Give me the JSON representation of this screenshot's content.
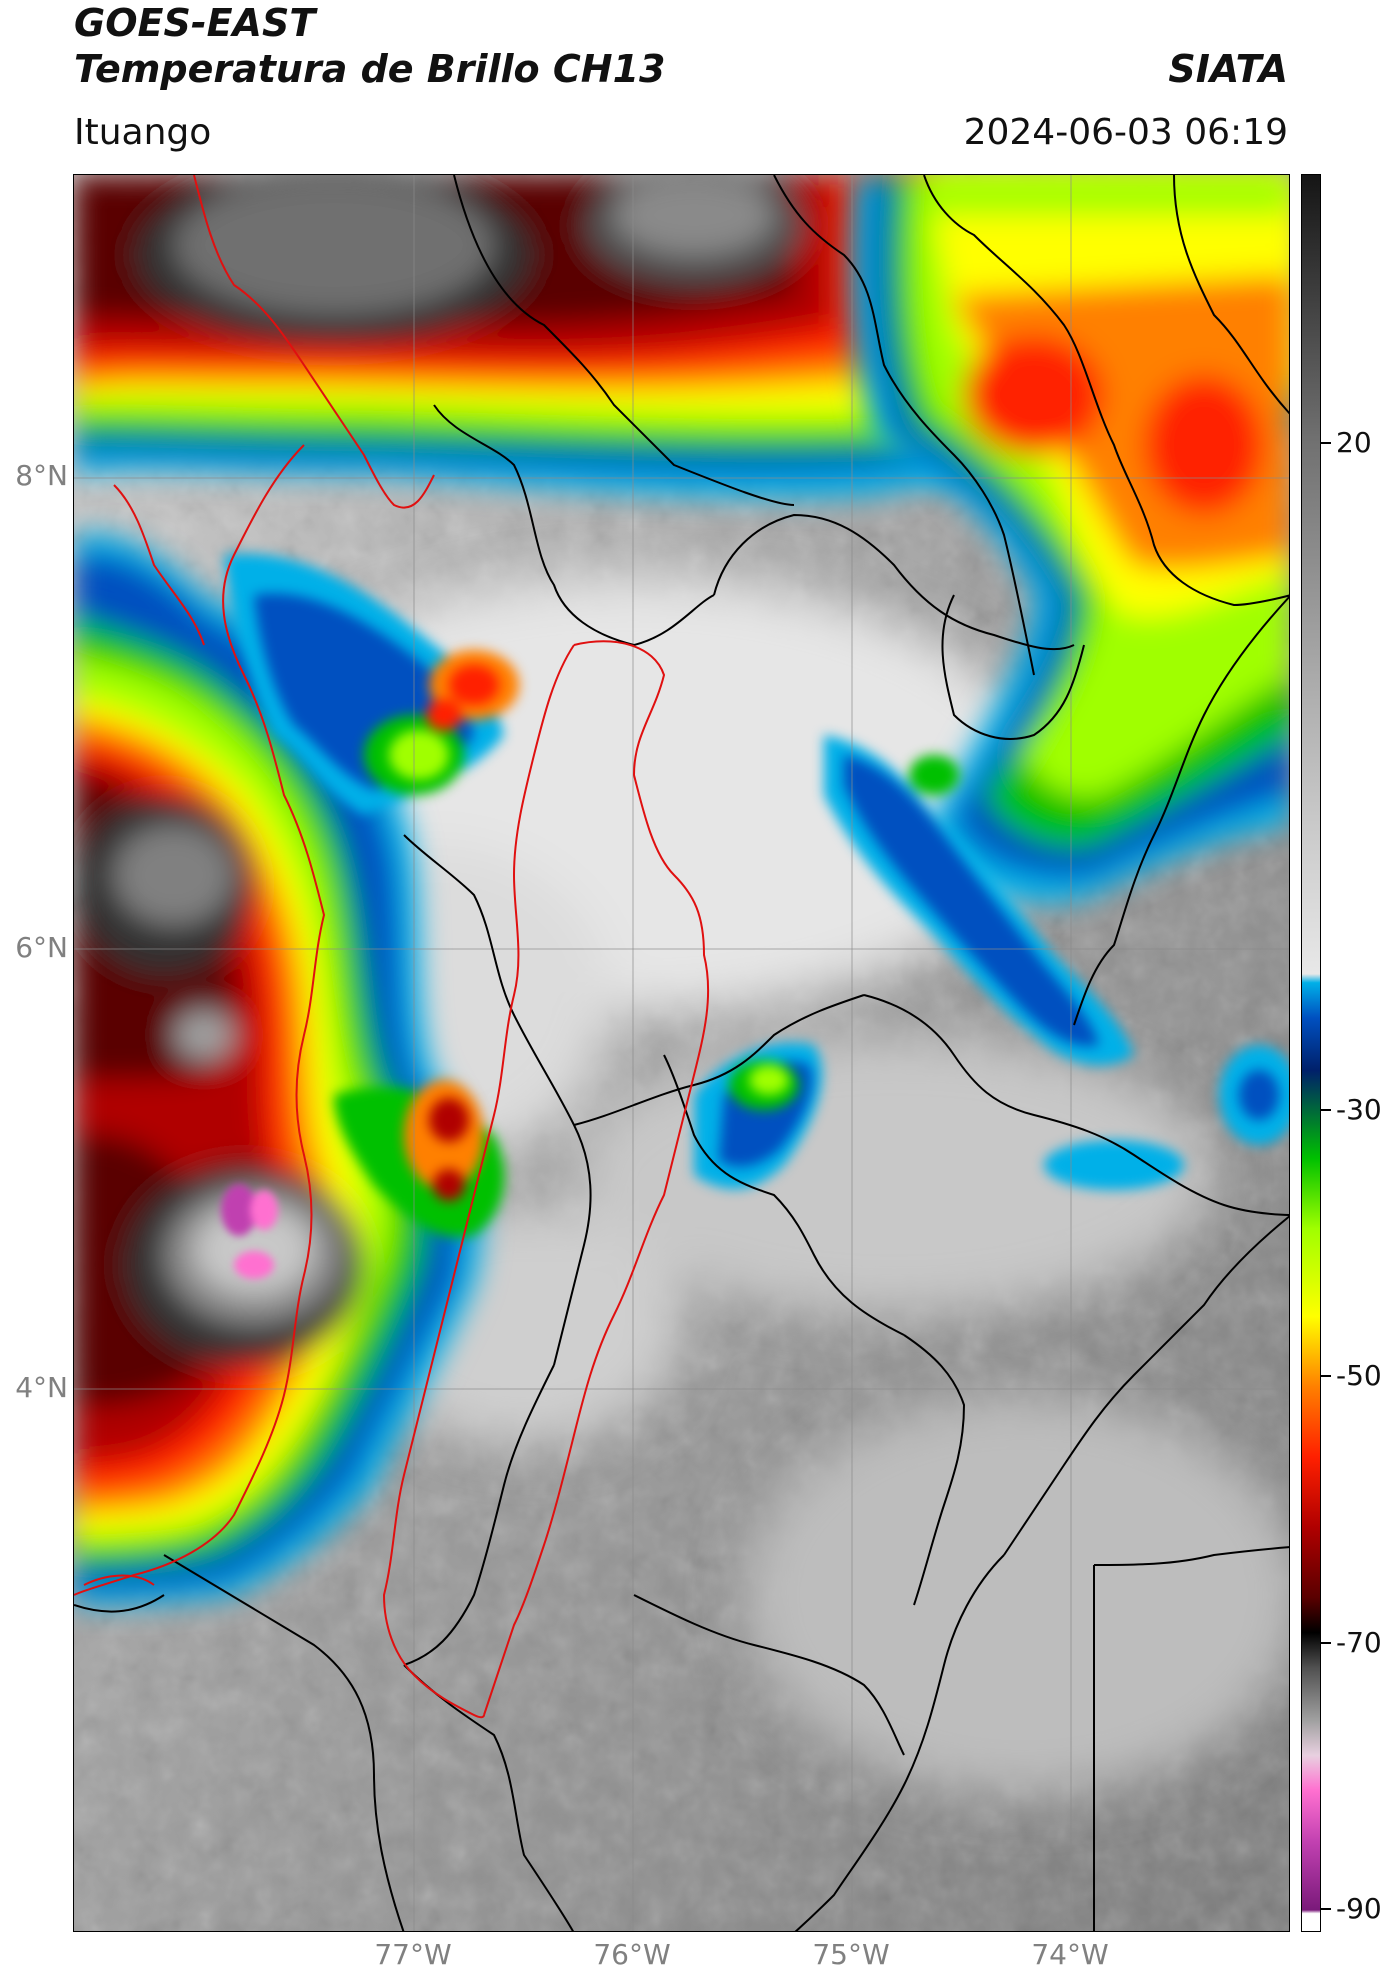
{
  "header": {
    "title_line1": "GOES-EAST",
    "title_line2": "Temperatura de Brillo CH13",
    "brand": "SIATA",
    "location": "Ituango",
    "timestamp": "2024-06-03 06:19"
  },
  "map": {
    "lat_labels": [
      "8°N",
      "6°N",
      "4°N"
    ],
    "lon_labels": [
      "77°W",
      "76°W",
      "75°W",
      "74°W"
    ],
    "border_colors": {
      "country_and_department": "#000000",
      "watershed": "#e01010"
    }
  },
  "colorbar": {
    "tick_labels": [
      "20",
      "-30",
      "-50",
      "-70",
      "-90"
    ],
    "unit_scale": "brightness temperature (°C)",
    "palette": [
      "#ffffff",
      "#7a1a7a",
      "#c040b0",
      "#ff70d0",
      "#e8d0e0",
      "#a0a0a0",
      "#505050",
      "#000000",
      "#5a0000",
      "#b00000",
      "#ff2000",
      "#ff8000",
      "#ffff00",
      "#a0ff00",
      "#00c000",
      "#006040",
      "#00206a",
      "#0050c0",
      "#00b0e8",
      "#e8e8e8",
      "#808080",
      "#202020"
    ]
  }
}
